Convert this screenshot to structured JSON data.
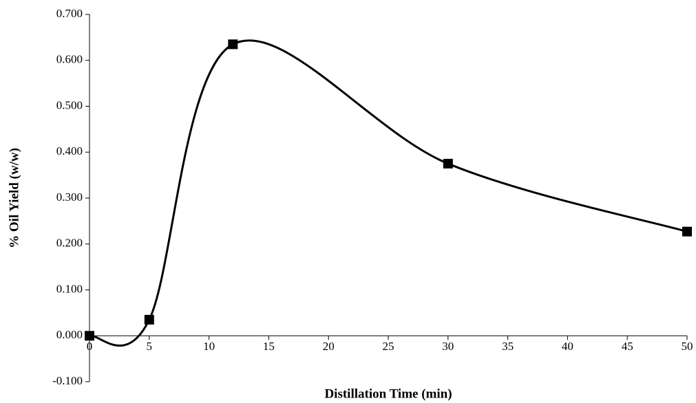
{
  "chart_data": {
    "type": "line",
    "x_label": "Distillation Time (min)",
    "y_label": "% Oil Yield (w/w)",
    "x": [
      0,
      5,
      12,
      30,
      50
    ],
    "series": [
      {
        "color": "#000000",
        "values": [
          0,
          0.035,
          0.635,
          0.375,
          0.227
        ]
      }
    ],
    "smooth": true,
    "marker": "square",
    "xlim": [
      0,
      50
    ],
    "xticks": [
      0,
      5,
      10,
      15,
      20,
      25,
      30,
      35,
      40,
      45,
      50
    ],
    "ylim": [
      -0.1,
      0.7
    ],
    "yticks": [
      {
        "value": -0.1,
        "label": "-0.100"
      },
      {
        "value": 0,
        "label": "0.000"
      },
      {
        "value": 0.1,
        "label": "0.100"
      },
      {
        "value": 0.2,
        "label": "0.200"
      },
      {
        "value": 0.3,
        "label": "0.300"
      },
      {
        "value": 0.4,
        "label": "0.400"
      },
      {
        "value": 0.5,
        "label": "0.500"
      },
      {
        "value": 0.6,
        "label": "0.600"
      },
      {
        "value": 0.7,
        "label": "0.700"
      }
    ],
    "grid": false
  }
}
